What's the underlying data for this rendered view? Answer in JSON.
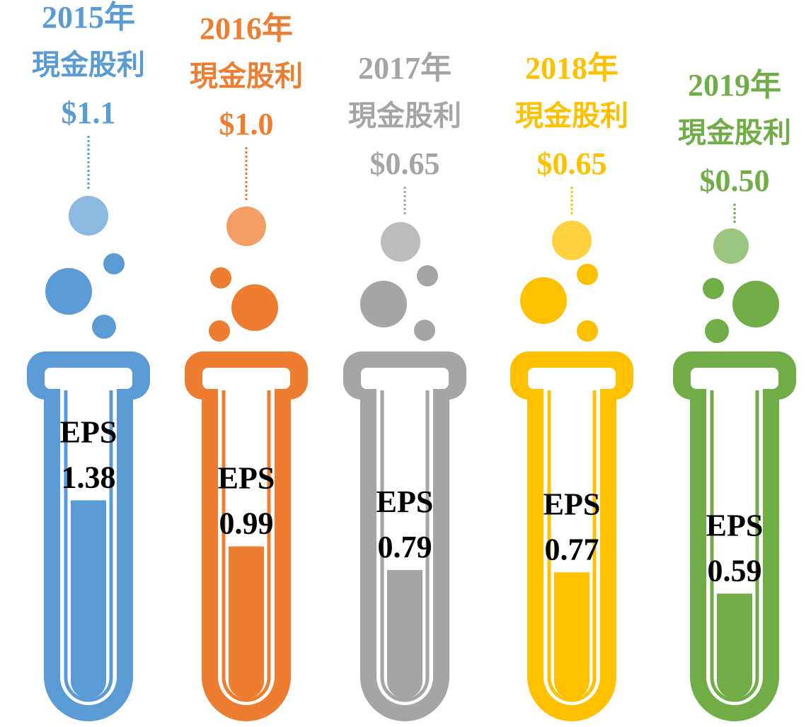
{
  "chart_data": {
    "type": "bar",
    "categories": [
      "2015年",
      "2016年",
      "2017年",
      "2018年",
      "2019年"
    ],
    "dividend_label": "現金股利",
    "eps_label": "EPS",
    "colors": [
      "#5b9bd5",
      "#ed7d31",
      "#a5a5a5",
      "#ffc000",
      "#70ad47"
    ],
    "dividends": {
      "values": [
        1.1,
        1.0,
        0.65,
        0.65,
        0.5
      ],
      "value_labels": [
        "$1.1",
        "$1.0",
        "$0.65",
        "$0.65",
        "$0.50"
      ]
    },
    "eps": {
      "values": [
        1.38,
        0.99,
        0.79,
        0.77,
        0.59
      ]
    },
    "ylim": [
      -0.3,
      1.7
    ]
  }
}
